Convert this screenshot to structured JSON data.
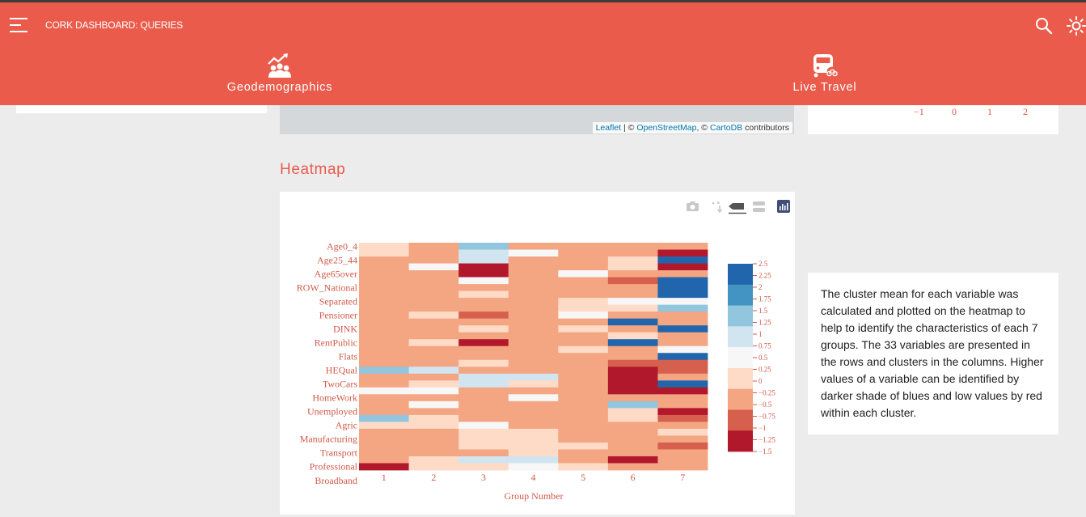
{
  "header": {
    "title": "CORK DASHBOARD: QUERIES",
    "tabs": [
      {
        "label": "Geodemographics",
        "icon": "growth-chart-people-icon"
      },
      {
        "label": "Live Travel",
        "icon": "bus-bike-icon"
      }
    ],
    "search_icon": "search-icon",
    "brightness_icon": "brightness-icon"
  },
  "map": {
    "attribution": {
      "leaflet": "Leaflet",
      "sep1": " | © ",
      "osm": "OpenStreetMap",
      "sep2": ", © ",
      "carto": "CartoDB",
      "tail": " contributors"
    }
  },
  "top_axis_ticks": [
    "−1",
    "0",
    "1",
    "2"
  ],
  "heatmap": {
    "title": "Heatmap",
    "toolbar": [
      "camera-icon",
      "pan-icon",
      "compare-hover-icon",
      "closest-hover-icon",
      "plotly-logo-icon"
    ]
  },
  "chart_data": {
    "type": "heatmap",
    "xlabel": "Group Number",
    "x": [
      "1",
      "2",
      "3",
      "4",
      "5",
      "6",
      "7"
    ],
    "y_tick_labels": [
      "Age0_4",
      "Age25_44",
      "Age65over",
      "ROW_National",
      "Separated",
      "Pensioner",
      "DINK",
      "RentPublic",
      "Flats",
      "HEQual",
      "TwoCars",
      "HomeWork",
      "Unemployed",
      "Agric",
      "Manufacturing",
      "Transport",
      "Professional",
      "Broadband"
    ],
    "rows": 33,
    "colorscale": [
      "#b2182b",
      "#d6604d",
      "#f4a582",
      "#fddbc7",
      "#f7f7f7",
      "#d1e5f0",
      "#92c5de",
      "#4393c3",
      "#2166ac"
    ],
    "zlim": [
      -1.5,
      2.5
    ],
    "colorbar_ticks": [
      "2.5",
      "2.25",
      "2",
      "1.75",
      "1.5",
      "1.25",
      "1",
      "0.75",
      "0.5",
      "0.25",
      "0",
      "−0.25",
      "−0.5",
      "−0.75",
      "−1",
      "−1.25",
      "−1.5"
    ],
    "z": [
      [
        0.1,
        -0.5,
        1.6,
        -0.3,
        -0.5,
        -0.5,
        -0.6
      ],
      [
        0.1,
        -0.3,
        1.0,
        0.3,
        -0.5,
        -0.3,
        -1.6
      ],
      [
        -0.6,
        -0.5,
        1.0,
        -0.3,
        -0.5,
        0.1,
        2.3
      ],
      [
        -0.3,
        0.4,
        -1.6,
        -0.3,
        -0.5,
        0.1,
        -1.6
      ],
      [
        -0.5,
        -0.5,
        -1.6,
        -0.5,
        0.4,
        -0.5,
        -0.6
      ],
      [
        -0.5,
        -0.5,
        0.4,
        -0.5,
        -0.3,
        -0.7,
        2.3
      ],
      [
        -0.5,
        -0.5,
        -0.3,
        -0.3,
        -0.3,
        -0.5,
        2.3
      ],
      [
        -0.5,
        -0.5,
        0.1,
        -0.3,
        -0.3,
        -0.3,
        2.3
      ],
      [
        -0.5,
        -0.5,
        -0.5,
        -0.5,
        0.1,
        0.4,
        0.4
      ],
      [
        -0.3,
        -0.5,
        -0.3,
        -0.5,
        0.1,
        0.1,
        1.3
      ],
      [
        -0.3,
        0.1,
        -0.9,
        -0.5,
        0.4,
        -0.5,
        -0.5
      ],
      [
        -0.5,
        -0.5,
        -0.3,
        -0.5,
        -0.3,
        2.3,
        -0.3
      ],
      [
        -0.5,
        -0.5,
        0.1,
        -0.5,
        0.1,
        -0.5,
        2.3
      ],
      [
        -0.5,
        -0.5,
        -0.5,
        -0.3,
        -0.3,
        0.1,
        -0.5
      ],
      [
        -0.5,
        0.1,
        -1.6,
        -0.3,
        -0.3,
        2.3,
        -0.5
      ],
      [
        -0.5,
        -0.5,
        -0.3,
        -0.5,
        0.1,
        -0.3,
        0.4
      ],
      [
        -0.5,
        -0.5,
        -0.5,
        -0.3,
        -0.5,
        -0.5,
        2.3
      ],
      [
        -0.5,
        -0.5,
        0.1,
        -0.3,
        -0.5,
        -0.9,
        -0.7
      ],
      [
        1.6,
        0.9,
        -0.5,
        -0.3,
        -0.5,
        -1.6,
        -0.9
      ],
      [
        -0.5,
        -0.5,
        0.9,
        0.9,
        -0.3,
        -1.6,
        -0.3
      ],
      [
        -0.3,
        0.1,
        0.9,
        0.1,
        -0.5,
        -1.6,
        2.3
      ],
      [
        0.4,
        0.4,
        -0.3,
        -0.3,
        -0.5,
        -1.6,
        -1.6
      ],
      [
        -0.3,
        -0.3,
        -0.5,
        0.4,
        -0.3,
        -0.5,
        -0.5
      ],
      [
        -0.5,
        0.4,
        -0.5,
        -0.5,
        -0.3,
        1.6,
        -0.3
      ],
      [
        -0.5,
        -0.5,
        -0.3,
        -0.3,
        -0.3,
        0.1,
        -1.3
      ],
      [
        1.6,
        0.1,
        -0.5,
        -0.5,
        -0.5,
        0.1,
        -0.9
      ],
      [
        0.1,
        0.1,
        0.4,
        -0.3,
        -0.5,
        -0.3,
        -0.5
      ],
      [
        -0.5,
        -0.3,
        0.1,
        0.1,
        -0.3,
        -0.5,
        0.1
      ],
      [
        -0.3,
        -0.3,
        0.1,
        0.1,
        -0.3,
        -0.3,
        -0.5
      ],
      [
        -0.5,
        -0.5,
        0.1,
        0.1,
        0.1,
        -0.3,
        -0.9
      ],
      [
        -0.3,
        -0.5,
        -0.3,
        0.1,
        -0.3,
        -0.3,
        -0.3
      ],
      [
        -0.3,
        0.1,
        0.9,
        0.9,
        -0.5,
        -1.6,
        -0.5
      ],
      [
        -1.6,
        0.1,
        0.1,
        0.4,
        0.1,
        -0.3,
        -0.5
      ]
    ]
  },
  "description": "The cluster mean for each variable was calculated and plotted on the heatmap to help to identify the characteristics of each 7 groups. The 33 variables are presented in the rows and clusters in the columns. Higher values of a variable can be identified by darker shade of blues and low values by red within each cluster."
}
